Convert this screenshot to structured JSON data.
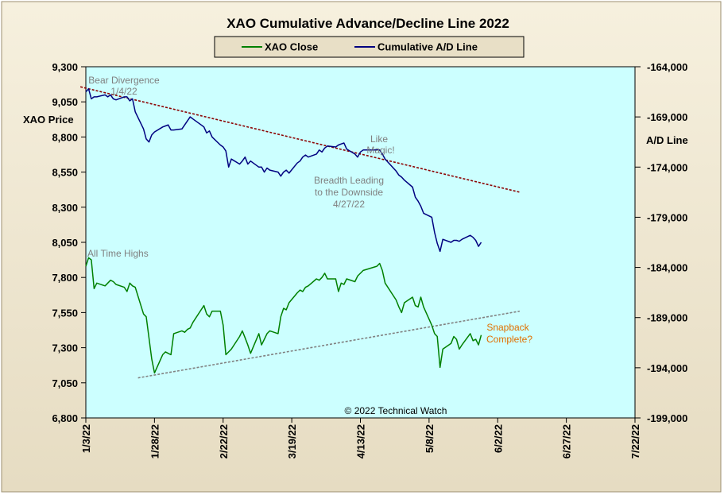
{
  "chart_data": {
    "type": "line",
    "title": "XAO Cumulative Advance/Decline Line 2022",
    "legend": {
      "placement": "top-center",
      "items": [
        {
          "label": "XAO Close",
          "color": "#008000"
        },
        {
          "label": "Cumulative A/D Line",
          "color": "#000080"
        }
      ]
    },
    "y_left": {
      "label": "XAO Price",
      "range": [
        6800,
        9300
      ],
      "ticks": [
        "6,800",
        "7,050",
        "7,300",
        "7,550",
        "7,800",
        "8,050",
        "8,300",
        "8,550",
        "8,800",
        "9,050",
        "9,300"
      ]
    },
    "y_right": {
      "label": "A/D Line",
      "range": [
        -199000,
        -164000
      ],
      "ticks": [
        "-199,000",
        "-194,000",
        "-189,000",
        "-184,000",
        "-179,000",
        "-174,000",
        "-169,000",
        "-164,000"
      ]
    },
    "x_axis": {
      "range": [
        "2022-01-03",
        "2022-07-22"
      ],
      "tick_labels": [
        "1/3/22",
        "1/28/22",
        "2/22/22",
        "3/19/22",
        "4/13/22",
        "5/8/22",
        "6/2/22",
        "6/27/22",
        "7/22/22"
      ]
    },
    "grid": false,
    "plot_background": "#ccffff",
    "series": [
      {
        "name": "XAO Close",
        "axis": "left",
        "color": "#008000",
        "points": [
          [
            "2022-01-03",
            7880
          ],
          [
            "2022-01-04",
            7940
          ],
          [
            "2022-01-05",
            7925
          ],
          [
            "2022-01-06",
            7720
          ],
          [
            "2022-01-07",
            7760
          ],
          [
            "2022-01-10",
            7740
          ],
          [
            "2022-01-11",
            7760
          ],
          [
            "2022-01-12",
            7780
          ],
          [
            "2022-01-13",
            7770
          ],
          [
            "2022-01-14",
            7750
          ],
          [
            "2022-01-17",
            7730
          ],
          [
            "2022-01-18",
            7700
          ],
          [
            "2022-01-19",
            7760
          ],
          [
            "2022-01-20",
            7740
          ],
          [
            "2022-01-21",
            7730
          ],
          [
            "2022-01-24",
            7540
          ],
          [
            "2022-01-25",
            7520
          ],
          [
            "2022-01-27",
            7220
          ],
          [
            "2022-01-28",
            7120
          ],
          [
            "2022-01-31",
            7250
          ],
          [
            "2022-02-01",
            7270
          ],
          [
            "2022-02-02",
            7260
          ],
          [
            "2022-02-03",
            7250
          ],
          [
            "2022-02-04",
            7400
          ],
          [
            "2022-02-07",
            7420
          ],
          [
            "2022-02-08",
            7410
          ],
          [
            "2022-02-09",
            7430
          ],
          [
            "2022-02-10",
            7440
          ],
          [
            "2022-02-11",
            7480
          ],
          [
            "2022-02-14",
            7570
          ],
          [
            "2022-02-15",
            7600
          ],
          [
            "2022-02-16",
            7540
          ],
          [
            "2022-02-17",
            7520
          ],
          [
            "2022-02-18",
            7560
          ],
          [
            "2022-02-21",
            7560
          ],
          [
            "2022-02-22",
            7460
          ],
          [
            "2022-02-23",
            7250
          ],
          [
            "2022-02-24",
            7270
          ],
          [
            "2022-02-25",
            7290
          ],
          [
            "2022-02-28",
            7380
          ],
          [
            "2022-03-01",
            7420
          ],
          [
            "2022-03-02",
            7370
          ],
          [
            "2022-03-03",
            7320
          ],
          [
            "2022-03-04",
            7260
          ],
          [
            "2022-03-07",
            7400
          ],
          [
            "2022-03-08",
            7320
          ],
          [
            "2022-03-09",
            7360
          ],
          [
            "2022-03-10",
            7400
          ],
          [
            "2022-03-11",
            7420
          ],
          [
            "2022-03-14",
            7400
          ],
          [
            "2022-03-15",
            7520
          ],
          [
            "2022-03-16",
            7580
          ],
          [
            "2022-03-17",
            7570
          ],
          [
            "2022-03-18",
            7620
          ],
          [
            "2022-03-21",
            7690
          ],
          [
            "2022-03-22",
            7710
          ],
          [
            "2022-03-23",
            7700
          ],
          [
            "2022-03-24",
            7730
          ],
          [
            "2022-03-25",
            7740
          ],
          [
            "2022-03-28",
            7790
          ],
          [
            "2022-03-29",
            7780
          ],
          [
            "2022-03-30",
            7800
          ],
          [
            "2022-03-31",
            7830
          ],
          [
            "2022-04-01",
            7790
          ],
          [
            "2022-04-04",
            7790
          ],
          [
            "2022-04-05",
            7700
          ],
          [
            "2022-04-06",
            7760
          ],
          [
            "2022-04-07",
            7750
          ],
          [
            "2022-04-08",
            7790
          ],
          [
            "2022-04-11",
            7770
          ],
          [
            "2022-04-12",
            7810
          ],
          [
            "2022-04-13",
            7830
          ],
          [
            "2022-04-14",
            7850
          ],
          [
            "2022-04-19",
            7880
          ],
          [
            "2022-04-20",
            7900
          ],
          [
            "2022-04-21",
            7850
          ],
          [
            "2022-04-22",
            7760
          ],
          [
            "2022-04-26",
            7640
          ],
          [
            "2022-04-27",
            7590
          ],
          [
            "2022-04-28",
            7550
          ],
          [
            "2022-04-29",
            7620
          ],
          [
            "2022-05-02",
            7660
          ],
          [
            "2022-05-03",
            7600
          ],
          [
            "2022-05-04",
            7590
          ],
          [
            "2022-05-05",
            7660
          ],
          [
            "2022-05-06",
            7590
          ],
          [
            "2022-05-09",
            7460
          ],
          [
            "2022-05-10",
            7400
          ],
          [
            "2022-05-11",
            7380
          ],
          [
            "2022-05-12",
            7160
          ],
          [
            "2022-05-13",
            7290
          ],
          [
            "2022-05-16",
            7330
          ],
          [
            "2022-05-17",
            7380
          ],
          [
            "2022-05-18",
            7360
          ],
          [
            "2022-05-19",
            7290
          ],
          [
            "2022-05-20",
            7320
          ],
          [
            "2022-05-23",
            7400
          ],
          [
            "2022-05-24",
            7350
          ],
          [
            "2022-05-25",
            7360
          ],
          [
            "2022-05-26",
            7320
          ],
          [
            "2022-05-27",
            7390
          ]
        ]
      },
      {
        "name": "Cumulative A/D Line",
        "axis": "right",
        "color": "#000080",
        "points": [
          [
            "2022-01-03",
            -166500
          ],
          [
            "2022-01-04",
            -166200
          ],
          [
            "2022-01-05",
            -167200
          ],
          [
            "2022-01-06",
            -167000
          ],
          [
            "2022-01-07",
            -167000
          ],
          [
            "2022-01-10",
            -166800
          ],
          [
            "2022-01-11",
            -167000
          ],
          [
            "2022-01-12",
            -166800
          ],
          [
            "2022-01-13",
            -167200
          ],
          [
            "2022-01-14",
            -167300
          ],
          [
            "2022-01-17",
            -167000
          ],
          [
            "2022-01-18",
            -167000
          ],
          [
            "2022-01-19",
            -167400
          ],
          [
            "2022-01-20",
            -167200
          ],
          [
            "2022-01-21",
            -168500
          ],
          [
            "2022-01-24",
            -170200
          ],
          [
            "2022-01-25",
            -171200
          ],
          [
            "2022-01-26",
            -171500
          ],
          [
            "2022-01-27",
            -170800
          ],
          [
            "2022-01-28",
            -170500
          ],
          [
            "2022-01-31",
            -170000
          ],
          [
            "2022-02-01",
            -169900
          ],
          [
            "2022-02-02",
            -169800
          ],
          [
            "2022-02-03",
            -170300
          ],
          [
            "2022-02-04",
            -170300
          ],
          [
            "2022-02-07",
            -170200
          ],
          [
            "2022-02-08",
            -169800
          ],
          [
            "2022-02-09",
            -169400
          ],
          [
            "2022-02-10",
            -169000
          ],
          [
            "2022-02-11",
            -169200
          ],
          [
            "2022-02-14",
            -169800
          ],
          [
            "2022-02-15",
            -170000
          ],
          [
            "2022-02-16",
            -170600
          ],
          [
            "2022-02-17",
            -170400
          ],
          [
            "2022-02-18",
            -171000
          ],
          [
            "2022-02-21",
            -171800
          ],
          [
            "2022-02-22",
            -172000
          ],
          [
            "2022-02-23",
            -172400
          ],
          [
            "2022-02-24",
            -174000
          ],
          [
            "2022-02-25",
            -173200
          ],
          [
            "2022-02-28",
            -173700
          ],
          [
            "2022-03-01",
            -173400
          ],
          [
            "2022-03-02",
            -173000
          ],
          [
            "2022-03-03",
            -173700
          ],
          [
            "2022-03-04",
            -173400
          ],
          [
            "2022-03-07",
            -174000
          ],
          [
            "2022-03-08",
            -174000
          ],
          [
            "2022-03-09",
            -174500
          ],
          [
            "2022-03-10",
            -174100
          ],
          [
            "2022-03-11",
            -174300
          ],
          [
            "2022-03-14",
            -174500
          ],
          [
            "2022-03-15",
            -174900
          ],
          [
            "2022-03-16",
            -174500
          ],
          [
            "2022-03-17",
            -174300
          ],
          [
            "2022-03-18",
            -174600
          ],
          [
            "2022-03-21",
            -173600
          ],
          [
            "2022-03-22",
            -173400
          ],
          [
            "2022-03-23",
            -173000
          ],
          [
            "2022-03-24",
            -172800
          ],
          [
            "2022-03-25",
            -173000
          ],
          [
            "2022-03-28",
            -172700
          ],
          [
            "2022-03-29",
            -172300
          ],
          [
            "2022-03-30",
            -172500
          ],
          [
            "2022-03-31",
            -172100
          ],
          [
            "2022-04-01",
            -171900
          ],
          [
            "2022-04-04",
            -172000
          ],
          [
            "2022-04-05",
            -171800
          ],
          [
            "2022-04-06",
            -171700
          ],
          [
            "2022-04-07",
            -171600
          ],
          [
            "2022-04-08",
            -172200
          ],
          [
            "2022-04-11",
            -172700
          ],
          [
            "2022-04-12",
            -173000
          ],
          [
            "2022-04-13",
            -172500
          ],
          [
            "2022-04-14",
            -172300
          ],
          [
            "2022-04-19",
            -172300
          ],
          [
            "2022-04-20",
            -172300
          ],
          [
            "2022-04-21",
            -172700
          ],
          [
            "2022-04-22",
            -173200
          ],
          [
            "2022-04-26",
            -174400
          ],
          [
            "2022-04-27",
            -174800
          ],
          [
            "2022-04-28",
            -175000
          ],
          [
            "2022-04-29",
            -175300
          ],
          [
            "2022-05-02",
            -176000
          ],
          [
            "2022-05-03",
            -177000
          ],
          [
            "2022-05-04",
            -177400
          ],
          [
            "2022-05-05",
            -177900
          ],
          [
            "2022-05-06",
            -178600
          ],
          [
            "2022-05-09",
            -179000
          ],
          [
            "2022-05-10",
            -180500
          ],
          [
            "2022-05-11",
            -181600
          ],
          [
            "2022-05-12",
            -182400
          ],
          [
            "2022-05-13",
            -181200
          ],
          [
            "2022-05-16",
            -181500
          ],
          [
            "2022-05-17",
            -181300
          ],
          [
            "2022-05-18",
            -181300
          ],
          [
            "2022-05-19",
            -181400
          ],
          [
            "2022-05-20",
            -181200
          ],
          [
            "2022-05-23",
            -180800
          ],
          [
            "2022-05-24",
            -181000
          ],
          [
            "2022-05-25",
            -181300
          ],
          [
            "2022-05-26",
            -181900
          ],
          [
            "2022-05-27",
            -181500
          ]
        ]
      }
    ],
    "trendlines": [
      {
        "axis": "right",
        "style": "dashed",
        "color": "#8b0000",
        "points": [
          [
            "2022-01-01",
            -166000
          ],
          [
            "2022-06-10",
            -176500
          ]
        ]
      },
      {
        "axis": "left",
        "style": "dashed",
        "color": "#808080",
        "points": [
          [
            "2022-01-22",
            7085
          ],
          [
            "2022-06-10",
            7560
          ]
        ]
      }
    ],
    "annotations": [
      {
        "text": "Bear Divergence",
        "color": "#808080"
      },
      {
        "text": "1/4/22",
        "color": "#808080"
      },
      {
        "text": "Like",
        "color": "#808080"
      },
      {
        "text": "Magic!",
        "color": "#808080"
      },
      {
        "text": "Breadth Leading",
        "color": "#808080"
      },
      {
        "text": "to the Downside",
        "color": "#808080"
      },
      {
        "text": "4/27/22",
        "color": "#808080"
      },
      {
        "text": "All Time Highs",
        "color": "#808080"
      },
      {
        "text": "Snapback",
        "color": "#e07000"
      },
      {
        "text": "Complete?",
        "color": "#e07000"
      },
      {
        "text": "© 2022 Technical Watch",
        "color": "#000000"
      }
    ]
  }
}
